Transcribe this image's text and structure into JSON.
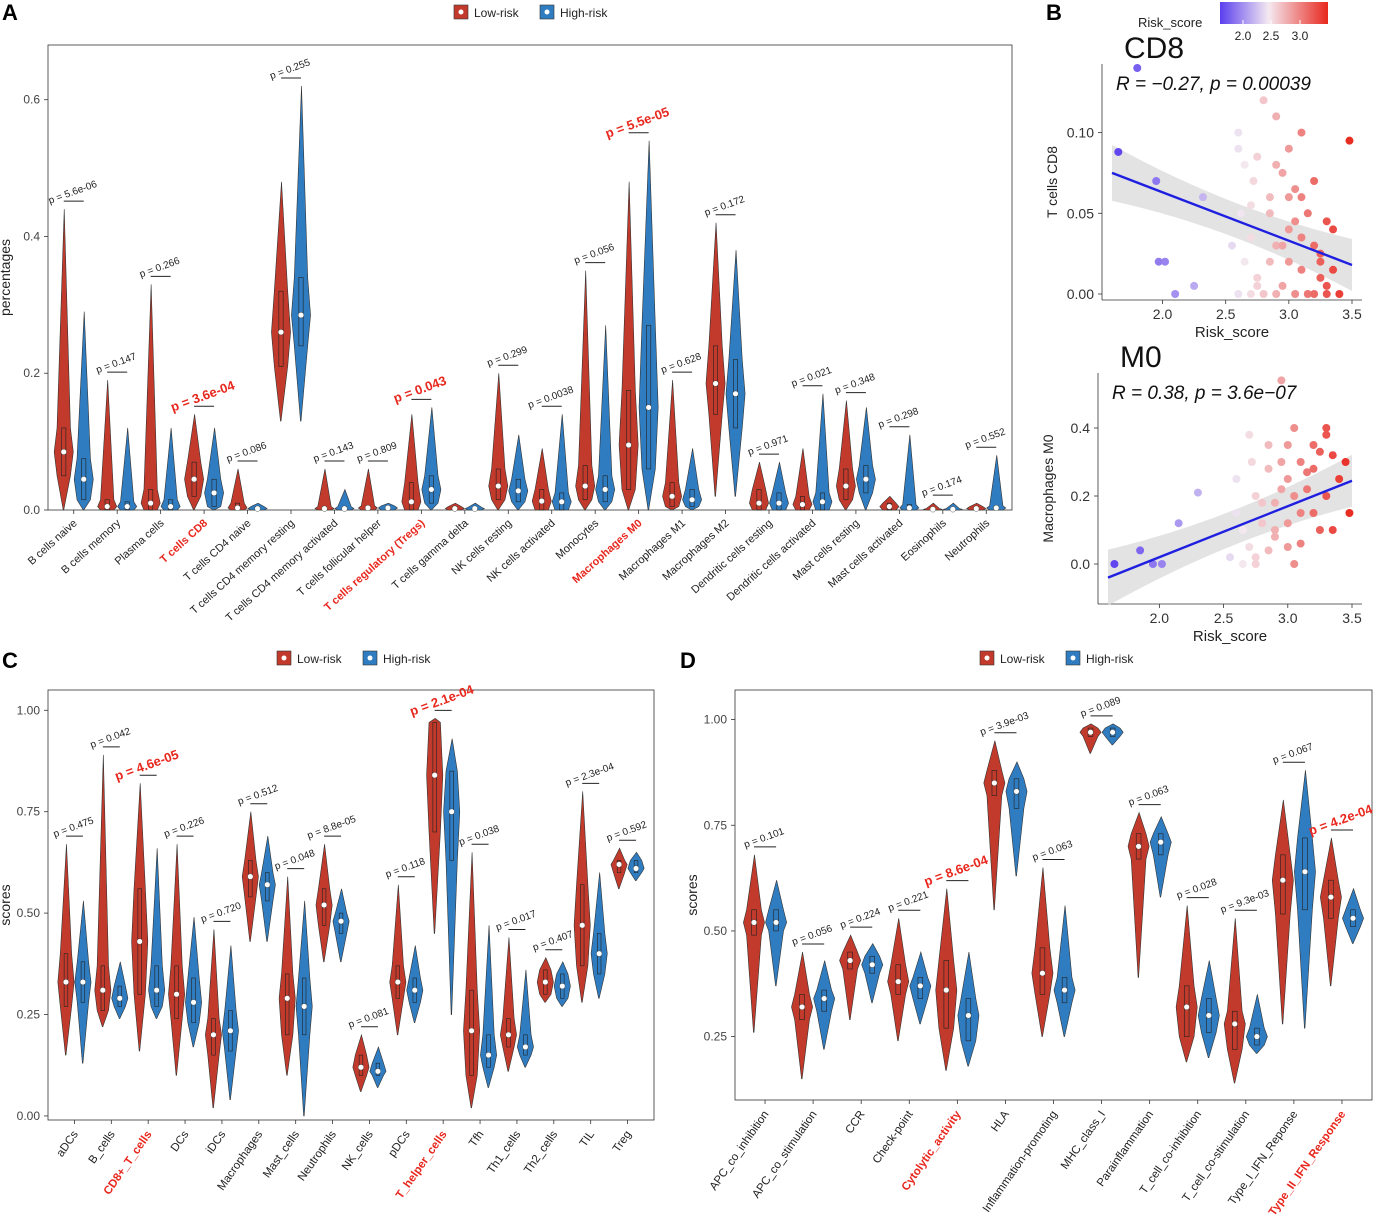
{
  "colors": {
    "low": "#C13A2B",
    "high": "#2F7CC0",
    "red_label": "#E8281E",
    "line": "#1F1FE0",
    "ci": "#D9D9D9",
    "point_low": "#5A3FEF",
    "point_mid": "#F4E9F0",
    "point_high": "#E8281E"
  },
  "chart_data": [
    {
      "type": "violin",
      "panel": "A",
      "ylabel": "percentages",
      "ylim": [
        0,
        0.68
      ],
      "yticks": [
        "0.0",
        "0.2",
        "0.4",
        "0.6"
      ],
      "legend": {
        "low": "Low-risk",
        "high": "High-risk"
      },
      "categories": [
        "B cells naive",
        "B cells memory",
        "Plasma cells",
        "T cells CD8",
        "T cells CD4 naive",
        "T cells CD4 memory resting",
        "T cells CD4 memory activated",
        "T cells follicular helper",
        "T cells regulatory (Tregs)",
        "T cells gamma delta",
        "NK cells resting",
        "NK cells activated",
        "Monocytes",
        "Macrophages M0",
        "Macrophages M1",
        "Macrophages M2",
        "Dendritic cells resting",
        "Dendritic cells activated",
        "Mast cells resting",
        "Mast cells activated",
        "Eosinophils",
        "Neutrophils"
      ],
      "highlight": [
        3,
        8,
        13
      ],
      "pvalues": [
        "p = 5.6e-06",
        "p = 0.147",
        "p = 0.266",
        "p = 3.6e-04",
        "p = 0.086",
        "p = 0.255",
        "p = 0.143",
        "p = 0.809",
        "p = 0.043",
        "",
        "p = 0.299",
        "p = 0.0038",
        "p = 0.056",
        "p = 5.5e-05",
        "p = 0.628",
        "p = 0.172",
        "p = 0.971",
        "p = 0.021",
        "p = 0.348",
        "p = 0.298",
        "p = 0.174",
        "p = 0.552"
      ],
      "series": [
        {
          "name": "Low-risk",
          "medians": [
            0.085,
            0.005,
            0.01,
            0.045,
            0.003,
            0.26,
            0.002,
            0.003,
            0.012,
            0.002,
            0.035,
            0.013,
            0.035,
            0.095,
            0.02,
            0.185,
            0.01,
            0.008,
            0.035,
            0.005,
            0.001,
            0.002
          ],
          "q1": [
            0.05,
            0,
            0,
            0.02,
            0,
            0.21,
            0,
            0,
            0,
            0,
            0.015,
            0,
            0.015,
            0.03,
            0.005,
            0.14,
            0,
            0,
            0.015,
            0,
            0,
            0
          ],
          "q3": [
            0.12,
            0.015,
            0.03,
            0.07,
            0.01,
            0.32,
            0.005,
            0.006,
            0.04,
            0.005,
            0.06,
            0.03,
            0.065,
            0.175,
            0.04,
            0.24,
            0.03,
            0.02,
            0.06,
            0.01,
            0.002,
            0.005
          ],
          "max": [
            0.44,
            0.19,
            0.33,
            0.14,
            0.06,
            0.48,
            0.06,
            0.06,
            0.14,
            0.01,
            0.2,
            0.09,
            0.35,
            0.48,
            0.19,
            0.42,
            0.07,
            0.09,
            0.16,
            0.02,
            0.01,
            0.01
          ],
          "min": [
            0,
            0,
            0,
            0,
            0,
            0.13,
            0,
            0,
            0,
            0,
            0,
            0,
            0,
            0,
            0,
            0.02,
            0,
            0,
            0,
            0,
            0,
            0
          ]
        },
        {
          "name": "High-risk",
          "medians": [
            0.045,
            0.005,
            0.005,
            0.025,
            0.002,
            0.285,
            0.002,
            0.003,
            0.03,
            0.002,
            0.028,
            0.012,
            0.03,
            0.15,
            0.015,
            0.17,
            0.01,
            0.012,
            0.045,
            0.003,
            0.001,
            0.003
          ],
          "q1": [
            0.015,
            0,
            0,
            0.005,
            0,
            0.24,
            0,
            0,
            0.01,
            0,
            0.012,
            0,
            0.012,
            0.06,
            0.005,
            0.12,
            0,
            0,
            0.025,
            0,
            0,
            0
          ],
          "q3": [
            0.075,
            0.012,
            0.015,
            0.045,
            0.005,
            0.34,
            0.005,
            0.006,
            0.05,
            0.004,
            0.045,
            0.025,
            0.05,
            0.27,
            0.03,
            0.22,
            0.025,
            0.025,
            0.065,
            0.008,
            0.002,
            0.006
          ],
          "max": [
            0.29,
            0.12,
            0.12,
            0.12,
            0.01,
            0.62,
            0.03,
            0.01,
            0.15,
            0.01,
            0.11,
            0.14,
            0.27,
            0.54,
            0.09,
            0.38,
            0.07,
            0.17,
            0.15,
            0.11,
            0.01,
            0.08
          ],
          "min": [
            0,
            0,
            0,
            0,
            0,
            0.13,
            0,
            0,
            0,
            0,
            0,
            0,
            0,
            0,
            0,
            0.02,
            0,
            0,
            0,
            0,
            0,
            0
          ]
        }
      ]
    },
    {
      "type": "scatter",
      "panel": "B",
      "title": "CD8",
      "stat": "R = −0.27, p = 0.00039",
      "xlabel": "Risk_score",
      "ylabel": "T cells CD8",
      "xlim": [
        1.6,
        3.5
      ],
      "ylim": [
        0,
        0.14
      ],
      "xticks": [
        "2.0",
        "2.5",
        "3.0",
        "3.5"
      ],
      "yticks": [
        "0.00",
        "0.05",
        "0.10"
      ],
      "legend": {
        "title": "Risk_score",
        "ticks": [
          "2.0",
          "2.5",
          "3.0"
        ]
      },
      "fit": {
        "x": [
          1.6,
          3.5
        ],
        "y": [
          0.075,
          0.018
        ]
      },
      "points": {
        "x": [
          1.65,
          1.8,
          1.95,
          1.97,
          2.02,
          2.1,
          2.25,
          2.32,
          2.55,
          2.6,
          2.62,
          2.65,
          2.7,
          2.72,
          2.75,
          2.8,
          2.85,
          2.9,
          2.95,
          3.0,
          3.05,
          3.1,
          3.15,
          3.2,
          3.25,
          3.3,
          3.35,
          3.48,
          3.3,
          2.9,
          2.6,
          2.7,
          2.75,
          2.85,
          3.05,
          3.1,
          3.2,
          3.25,
          2.95,
          3.0,
          2.65,
          2.8,
          3.15,
          2.9,
          3.0,
          3.1,
          3.35,
          3.4,
          2.7,
          2.85,
          3.05,
          2.6,
          2.95,
          3.2,
          3.3,
          2.75,
          2.9,
          3.0,
          3.1,
          3.25
        ],
        "y": [
          0.088,
          0.14,
          0.07,
          0.02,
          0.02,
          0.0,
          0.005,
          0.06,
          0.03,
          0.1,
          0.05,
          0.02,
          0.0,
          0.07,
          0.01,
          0.12,
          0.06,
          0.03,
          0.005,
          0.09,
          0.045,
          0.015,
          0.0,
          0.07,
          0.025,
          0.005,
          0.04,
          0.095,
          0.0,
          0.11,
          0.0,
          0.035,
          0.085,
          0.05,
          0.0,
          0.06,
          0.03,
          0.01,
          0.075,
          0.02,
          0.08,
          0.0,
          0.05,
          0.0,
          0.04,
          0.1,
          0.015,
          0.0,
          0.055,
          0.02,
          0.065,
          0.09,
          0.03,
          0.0,
          0.045,
          0.005,
          0.08,
          0.06,
          0.035,
          0.02
        ]
      }
    },
    {
      "type": "scatter",
      "panel": "B",
      "title": "M0",
      "stat": "R = 0.38, p = 3.6e−07",
      "xlabel": "Risk_score",
      "ylabel": "Macrophages M0",
      "xlim": [
        1.6,
        3.5
      ],
      "ylim": [
        -0.1,
        0.55
      ],
      "xticks": [
        "2.0",
        "2.5",
        "3.0",
        "3.5"
      ],
      "yticks": [
        "0.0",
        "0.2",
        "0.4"
      ],
      "fit": {
        "x": [
          1.6,
          3.5
        ],
        "y": [
          -0.04,
          0.245
        ]
      },
      "points": {
        "x": [
          1.65,
          1.85,
          1.95,
          2.02,
          2.15,
          2.3,
          2.55,
          2.6,
          2.65,
          2.7,
          2.72,
          2.75,
          2.8,
          2.85,
          2.9,
          2.95,
          3.0,
          3.05,
          3.1,
          3.15,
          3.2,
          3.25,
          3.3,
          3.35,
          3.45,
          3.48,
          2.95,
          3.05,
          3.3,
          2.6,
          2.75,
          2.85,
          3.0,
          3.1,
          3.2,
          3.25,
          2.7,
          2.9,
          3.15,
          2.8,
          2.95,
          3.05,
          3.35,
          3.4,
          2.65,
          2.85,
          3.0,
          3.2,
          3.3,
          2.9,
          3.1,
          2.75,
          3.0
        ],
        "y": [
          0.0,
          0.04,
          0.0,
          0.0,
          0.12,
          0.21,
          0.02,
          0.25,
          0.1,
          0.05,
          0.3,
          0.0,
          0.18,
          0.35,
          0.08,
          0.22,
          0.12,
          0.4,
          0.06,
          0.27,
          0.15,
          0.33,
          0.2,
          0.1,
          0.3,
          0.15,
          0.54,
          0.0,
          0.4,
          0.15,
          0.2,
          0.28,
          0.05,
          0.3,
          0.35,
          0.1,
          0.38,
          0.18,
          0.22,
          0.12,
          0.3,
          0.2,
          0.32,
          0.25,
          0.0,
          0.04,
          0.25,
          0.28,
          0.38,
          0.1,
          0.15,
          0.02,
          0.35
        ]
      }
    },
    {
      "type": "violin",
      "panel": "C",
      "ylabel": "scores",
      "ylim": [
        -0.01,
        1.05
      ],
      "yticks": [
        "0.00",
        "0.25",
        "0.50",
        "0.75",
        "1.00"
      ],
      "legend": {
        "low": "Low-risk",
        "high": "High-risk"
      },
      "categories": [
        "aDCs",
        "B_cells",
        "CD8+_T_cells",
        "DCs",
        "iDCs",
        "Macrophages",
        "Mast_cells",
        "Neutrophils",
        "NK_cells",
        "pDCs",
        "T_helper_cells",
        "Tfh",
        "Th1_cells",
        "Th2_cells",
        "TIL",
        "Treg"
      ],
      "highlight": [
        2,
        10
      ],
      "pvalues": [
        "p = 0.475",
        "p = 0.042",
        "p = 4.6e-05",
        "p = 0.226",
        "p = 0.720",
        "p = 0.512",
        "p = 0.048",
        "p = 8.8e-05",
        "p = 0.081",
        "p = 0.118",
        "p = 2.1e-04",
        "p = 0.038",
        "p = 0.017",
        "p = 0.407",
        "p = 2.3e-04",
        "p = 0.592"
      ],
      "series": [
        {
          "name": "Low-risk",
          "medians": [
            0.33,
            0.31,
            0.43,
            0.3,
            0.2,
            0.59,
            0.29,
            0.52,
            0.12,
            0.33,
            0.84,
            0.21,
            0.2,
            0.33,
            0.47,
            0.62
          ],
          "q1": [
            0.27,
            0.26,
            0.3,
            0.24,
            0.15,
            0.54,
            0.2,
            0.47,
            0.1,
            0.29,
            0.7,
            0.1,
            0.17,
            0.3,
            0.37,
            0.6
          ],
          "q3": [
            0.4,
            0.37,
            0.56,
            0.37,
            0.24,
            0.63,
            0.35,
            0.56,
            0.15,
            0.37,
            0.97,
            0.31,
            0.24,
            0.36,
            0.57,
            0.63
          ],
          "max": [
            0.67,
            0.89,
            0.82,
            0.67,
            0.46,
            0.75,
            0.59,
            0.67,
            0.2,
            0.57,
            0.98,
            0.65,
            0.44,
            0.39,
            0.8,
            0.66
          ],
          "min": [
            0.15,
            0.22,
            0.16,
            0.1,
            0.02,
            0.43,
            0.1,
            0.38,
            0.06,
            0.2,
            0.45,
            0.02,
            0.11,
            0.28,
            0.28,
            0.56
          ]
        },
        {
          "name": "High-risk",
          "medians": [
            0.33,
            0.29,
            0.31,
            0.28,
            0.21,
            0.57,
            0.27,
            0.48,
            0.11,
            0.31,
            0.75,
            0.15,
            0.17,
            0.32,
            0.4,
            0.61
          ],
          "q1": [
            0.28,
            0.27,
            0.27,
            0.23,
            0.16,
            0.53,
            0.2,
            0.45,
            0.1,
            0.28,
            0.63,
            0.12,
            0.15,
            0.29,
            0.35,
            0.6
          ],
          "q3": [
            0.38,
            0.32,
            0.37,
            0.34,
            0.26,
            0.6,
            0.34,
            0.5,
            0.13,
            0.34,
            0.85,
            0.2,
            0.2,
            0.35,
            0.45,
            0.63
          ],
          "max": [
            0.53,
            0.38,
            0.66,
            0.49,
            0.42,
            0.69,
            0.53,
            0.56,
            0.17,
            0.42,
            0.93,
            0.47,
            0.36,
            0.38,
            0.6,
            0.65
          ],
          "min": [
            0.13,
            0.24,
            0.24,
            0.17,
            0.04,
            0.43,
            0.0,
            0.38,
            0.07,
            0.23,
            0.25,
            0.07,
            0.12,
            0.27,
            0.29,
            0.58
          ]
        }
      ]
    },
    {
      "type": "violin",
      "panel": "D",
      "ylabel": "scores",
      "ylim": [
        0.1,
        1.07
      ],
      "yticks": [
        "0.25",
        "0.50",
        "0.75",
        "1.00"
      ],
      "legend": {
        "low": "Low-risk",
        "high": "High-risk"
      },
      "categories": [
        "APC_co_inhibition",
        "APC_co_stimulation",
        "CCR",
        "Check-point",
        "Cytolytic_activity",
        "HLA",
        "Inflammation-promoting",
        "MHC_class_I",
        "Parainflammation",
        "T_cell_co-inhibition",
        "T_cell_co-stimulation",
        "Type_I_IFN_Reponse",
        "Type_II_IFN_Response"
      ],
      "highlight": [
        4,
        12
      ],
      "pvalues": [
        "p = 0.101",
        "p = 0.056",
        "p = 0.224",
        "p = 0.221",
        "p = 8.6e-04",
        "p = 3.9e-03",
        "p = 0.063",
        "p = 0.089",
        "p = 0.063",
        "p = 0.028",
        "p = 9.3e-03",
        "p = 0.067",
        "p = 4.2e-04"
      ],
      "series": [
        {
          "name": "Low-risk",
          "medians": [
            0.52,
            0.32,
            0.43,
            0.38,
            0.36,
            0.85,
            0.4,
            0.97,
            0.7,
            0.32,
            0.28,
            0.62,
            0.58
          ],
          "q1": [
            0.49,
            0.29,
            0.41,
            0.35,
            0.27,
            0.82,
            0.35,
            0.96,
            0.67,
            0.25,
            0.22,
            0.54,
            0.53
          ],
          "q3": [
            0.55,
            0.35,
            0.45,
            0.42,
            0.43,
            0.88,
            0.46,
            0.98,
            0.73,
            0.37,
            0.31,
            0.68,
            0.62
          ],
          "max": [
            0.68,
            0.45,
            0.49,
            0.53,
            0.6,
            0.95,
            0.65,
            0.99,
            0.78,
            0.56,
            0.53,
            0.81,
            0.72
          ],
          "min": [
            0.26,
            0.15,
            0.29,
            0.24,
            0.17,
            0.55,
            0.25,
            0.92,
            0.39,
            0.19,
            0.14,
            0.28,
            0.37
          ]
        },
        {
          "name": "High-risk",
          "medians": [
            0.52,
            0.34,
            0.42,
            0.37,
            0.3,
            0.83,
            0.36,
            0.97,
            0.71,
            0.3,
            0.25,
            0.64,
            0.53
          ],
          "q1": [
            0.5,
            0.31,
            0.4,
            0.34,
            0.24,
            0.79,
            0.33,
            0.96,
            0.68,
            0.26,
            0.23,
            0.55,
            0.51
          ],
          "q3": [
            0.55,
            0.36,
            0.44,
            0.39,
            0.34,
            0.86,
            0.39,
            0.98,
            0.73,
            0.34,
            0.27,
            0.72,
            0.55
          ],
          "max": [
            0.62,
            0.43,
            0.47,
            0.45,
            0.45,
            0.9,
            0.56,
            0.99,
            0.77,
            0.43,
            0.35,
            0.88,
            0.6
          ],
          "min": [
            0.37,
            0.22,
            0.33,
            0.28,
            0.18,
            0.63,
            0.25,
            0.94,
            0.58,
            0.2,
            0.21,
            0.27,
            0.47
          ]
        }
      ]
    }
  ],
  "panel_labels": {
    "a": "A",
    "b": "B",
    "c": "C",
    "d": "D"
  }
}
